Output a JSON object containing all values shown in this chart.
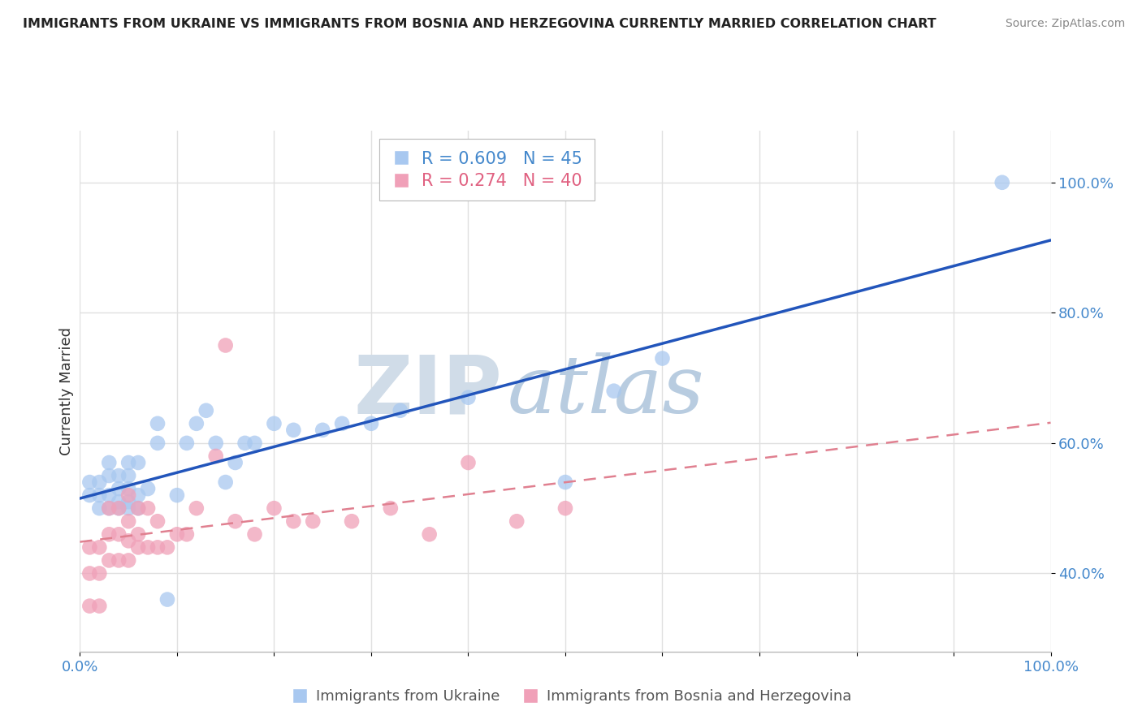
{
  "title": "IMMIGRANTS FROM UKRAINE VS IMMIGRANTS FROM BOSNIA AND HERZEGOVINA CURRENTLY MARRIED CORRELATION CHART",
  "source": "Source: ZipAtlas.com",
  "ylabel": "Currently Married",
  "ylabel_right_ticks": [
    "40.0%",
    "60.0%",
    "80.0%",
    "100.0%"
  ],
  "ylabel_right_vals": [
    0.4,
    0.6,
    0.8,
    1.0
  ],
  "xlim": [
    0.0,
    1.0
  ],
  "ylim": [
    0.28,
    1.08
  ],
  "ukraine_color": "#a8c8f0",
  "bosnia_color": "#f0a0b8",
  "ukraine_line_color": "#2255bb",
  "bosnia_line_color": "#e08090",
  "ukraine_R": 0.609,
  "ukraine_N": 45,
  "bosnia_R": 0.274,
  "bosnia_N": 40,
  "ukraine_scatter_x": [
    0.01,
    0.01,
    0.02,
    0.02,
    0.02,
    0.03,
    0.03,
    0.03,
    0.03,
    0.04,
    0.04,
    0.04,
    0.04,
    0.05,
    0.05,
    0.05,
    0.05,
    0.05,
    0.06,
    0.06,
    0.06,
    0.07,
    0.08,
    0.08,
    0.09,
    0.1,
    0.11,
    0.12,
    0.13,
    0.14,
    0.15,
    0.16,
    0.17,
    0.18,
    0.2,
    0.22,
    0.25,
    0.27,
    0.3,
    0.33,
    0.4,
    0.5,
    0.55,
    0.6,
    0.95
  ],
  "ukraine_scatter_y": [
    0.52,
    0.54,
    0.5,
    0.52,
    0.54,
    0.5,
    0.52,
    0.55,
    0.57,
    0.5,
    0.51,
    0.53,
    0.55,
    0.5,
    0.51,
    0.53,
    0.55,
    0.57,
    0.5,
    0.52,
    0.57,
    0.53,
    0.6,
    0.63,
    0.36,
    0.52,
    0.6,
    0.63,
    0.65,
    0.6,
    0.54,
    0.57,
    0.6,
    0.6,
    0.63,
    0.62,
    0.62,
    0.63,
    0.63,
    0.65,
    0.67,
    0.54,
    0.68,
    0.73,
    1.0
  ],
  "bosnia_scatter_x": [
    0.01,
    0.01,
    0.01,
    0.02,
    0.02,
    0.02,
    0.03,
    0.03,
    0.03,
    0.04,
    0.04,
    0.04,
    0.05,
    0.05,
    0.05,
    0.05,
    0.06,
    0.06,
    0.06,
    0.07,
    0.07,
    0.08,
    0.08,
    0.09,
    0.1,
    0.11,
    0.12,
    0.14,
    0.15,
    0.16,
    0.18,
    0.2,
    0.22,
    0.24,
    0.28,
    0.32,
    0.36,
    0.4,
    0.45,
    0.5
  ],
  "bosnia_scatter_y": [
    0.35,
    0.4,
    0.44,
    0.35,
    0.4,
    0.44,
    0.42,
    0.46,
    0.5,
    0.42,
    0.46,
    0.5,
    0.42,
    0.45,
    0.48,
    0.52,
    0.44,
    0.46,
    0.5,
    0.44,
    0.5,
    0.44,
    0.48,
    0.44,
    0.46,
    0.46,
    0.5,
    0.58,
    0.75,
    0.48,
    0.46,
    0.5,
    0.48,
    0.48,
    0.48,
    0.5,
    0.46,
    0.57,
    0.48,
    0.5
  ],
  "background_color": "#ffffff",
  "grid_color": "#e0e0e0",
  "watermark_zip": "ZIP",
  "watermark_atlas": "atlas",
  "watermark_color_zip": "#d0dce8",
  "watermark_color_atlas": "#b8cce0"
}
